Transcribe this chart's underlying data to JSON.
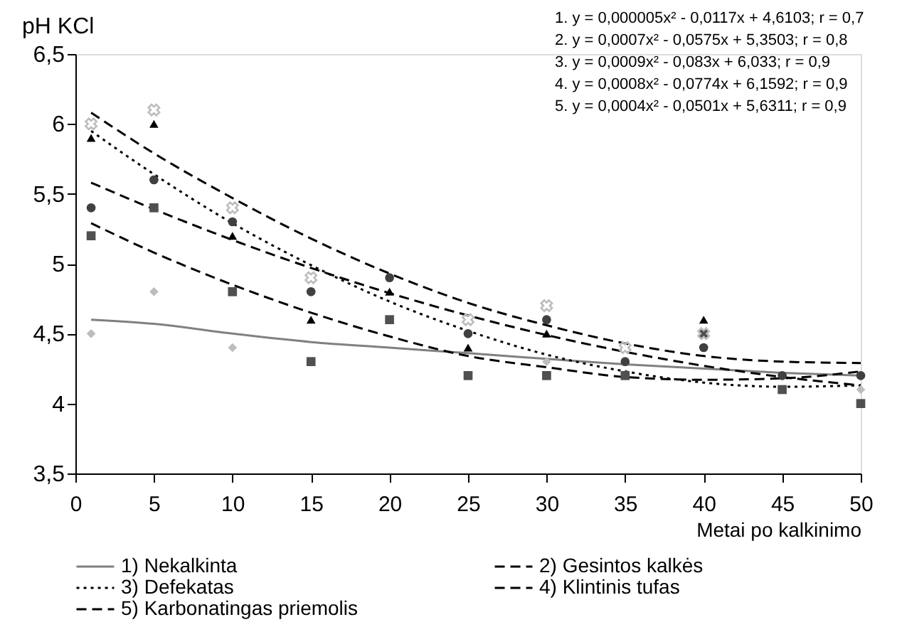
{
  "chart_data": {
    "type": "line",
    "xlabel": "Metai po kalkinimo",
    "ylabel": "pH KCl",
    "xlim": [
      0,
      50
    ],
    "xticks": [
      0,
      5,
      10,
      15,
      20,
      25,
      30,
      35,
      40,
      45,
      50
    ],
    "ylim": [
      3.5,
      6.5
    ],
    "yticks": [
      {
        "value": 3.5,
        "label": "3,5"
      },
      4,
      {
        "value": 4.5,
        "label": "4,5"
      },
      5,
      {
        "value": 5.5,
        "label": "5,5"
      },
      6,
      {
        "value": 6.5,
        "label": "6,5"
      }
    ],
    "grid": false,
    "legend": "bottom",
    "annotations": [
      "1. y = 0,000005x² - 0,0117x + 4,6103; r = 0,7",
      "2. y = 0,0007x² - 0,0575x + 5,3503; r = 0,8",
      "3. y = 0,0009x² - 0,083x + 6,033; r = 0,9",
      "4. y = 0,0008x² - 0,0774x + 6,1592; r = 0,9",
      "5. y = 0,0004x² - 0,0501x + 5,6311; r = 0,9"
    ],
    "series": [
      {
        "name": "1) Nekalkinta",
        "color": "#808080",
        "line_style": "solid",
        "x": [
          1,
          5,
          10,
          15,
          20,
          25,
          30,
          35,
          40,
          45,
          50
        ],
        "values": [
          4.6,
          4.57,
          4.5,
          4.44,
          4.4,
          4.36,
          4.32,
          4.28,
          4.25,
          4.22,
          4.2
        ]
      },
      {
        "name": "2) Gesintos kalkės",
        "color": "#000000",
        "line_style": "dashed",
        "x": [
          1,
          5,
          10,
          15,
          20,
          25,
          30,
          35,
          40,
          45,
          50
        ],
        "values": [
          5.29,
          5.08,
          4.85,
          4.65,
          4.48,
          4.34,
          4.26,
          4.19,
          4.17,
          4.18,
          4.23
        ]
      },
      {
        "name": "3) Defekatas",
        "color": "#000000",
        "line_style": "dotted",
        "x": [
          1,
          5,
          10,
          15,
          20,
          25,
          30,
          35,
          40,
          45,
          50
        ],
        "values": [
          5.95,
          5.64,
          5.29,
          4.99,
          4.73,
          4.52,
          4.35,
          4.23,
          4.15,
          4.12,
          4.13
        ]
      },
      {
        "name": "4) Klintinis tufas",
        "color": "#000000",
        "line_style": "dashed",
        "x": [
          1,
          5,
          10,
          15,
          20,
          25,
          30,
          35,
          40,
          45,
          50
        ],
        "values": [
          6.08,
          5.79,
          5.47,
          5.18,
          4.93,
          4.72,
          4.56,
          4.43,
          4.34,
          4.3,
          4.29
        ]
      },
      {
        "name": "5) Karbonatingas priemolis",
        "color": "#000000",
        "line_style": "dashed",
        "x": [
          1,
          5,
          10,
          15,
          20,
          25,
          30,
          35,
          40,
          45,
          50
        ],
        "values": [
          5.58,
          5.39,
          5.17,
          4.97,
          4.79,
          4.63,
          4.49,
          4.37,
          4.27,
          4.19,
          4.13
        ]
      },
      {
        "type": "scatter",
        "color": "#bdbdbd",
        "marker": "diamond",
        "x": [
          1,
          5,
          10,
          30,
          50
        ],
        "values": [
          4.5,
          4.8,
          4.4,
          4.3,
          4.1
        ]
      },
      {
        "type": "scatter",
        "color": "#505050",
        "marker": "square",
        "x": [
          1,
          5,
          10,
          15,
          20,
          25,
          30,
          35,
          40,
          45,
          50
        ],
        "values": [
          5.2,
          5.4,
          4.8,
          4.3,
          4.6,
          4.2,
          4.2,
          4.2,
          4.5,
          4.1,
          4.0
        ]
      },
      {
        "type": "scatter",
        "color": "#000000",
        "marker": "triangle",
        "x": [
          1,
          5,
          10,
          15,
          20,
          25,
          30,
          40
        ],
        "values": [
          5.9,
          6.0,
          5.2,
          4.6,
          4.8,
          4.4,
          4.5,
          4.6
        ]
      },
      {
        "type": "scatter",
        "color": "#bdbdbd",
        "marker": "cross",
        "x": [
          1,
          5,
          10,
          15,
          25,
          30,
          35,
          40
        ],
        "values": [
          6.0,
          6.1,
          5.4,
          4.9,
          4.6,
          4.7,
          4.4,
          4.5
        ]
      },
      {
        "type": "scatter",
        "color": "#404040",
        "marker": "circle",
        "x": [
          1,
          5,
          10,
          15,
          20,
          25,
          30,
          35,
          40,
          45,
          50
        ],
        "values": [
          5.4,
          5.6,
          5.3,
          4.8,
          4.9,
          4.5,
          4.6,
          4.3,
          4.4,
          4.2,
          4.2
        ]
      }
    ]
  }
}
